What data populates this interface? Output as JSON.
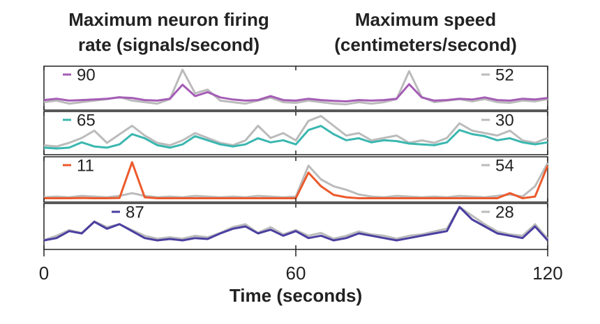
{
  "chart_data": {
    "type": "line",
    "y_title": [
      "Maximum neuron firing",
      "rate (signals/second)"
    ],
    "y2_title": [
      "Maximum speed",
      "(centimeters/second)"
    ],
    "xlabel": "Time (seconds)",
    "xlim": [
      0,
      120
    ],
    "xticks": [
      0,
      60,
      120
    ],
    "x": [
      0,
      3,
      6,
      9,
      12,
      15,
      18,
      21,
      24,
      27,
      30,
      33,
      36,
      39,
      42,
      45,
      48,
      51,
      54,
      57,
      60,
      63,
      66,
      69,
      72,
      75,
      78,
      81,
      84,
      87,
      90,
      93,
      96,
      99,
      102,
      105,
      108,
      111,
      114,
      117,
      120
    ],
    "panels": [
      {
        "ylim": [
          0,
          150
        ],
        "y2lim": [
          0,
          54
        ],
        "series": [
          {
            "name": "52",
            "color": "#bbbbbb",
            "axis": "y2",
            "values": [
              8,
              10,
              6,
              8,
              10,
              12,
              15,
              10,
              8,
              6,
              12,
              52,
              20,
              25,
              10,
              8,
              6,
              10,
              14,
              8,
              7,
              10,
              8,
              6,
              5,
              8,
              6,
              8,
              12,
              50,
              15,
              8,
              10,
              12,
              9,
              12,
              8,
              7,
              10,
              9,
              12
            ]
          },
          {
            "name": "90",
            "color": "#a45db5",
            "values": [
              30,
              35,
              28,
              30,
              32,
              35,
              40,
              38,
              30,
              28,
              35,
              88,
              45,
              60,
              40,
              32,
              28,
              30,
              45,
              30,
              28,
              35,
              30,
              27,
              25,
              30,
              28,
              30,
              35,
              90,
              40,
              28,
              30,
              35,
              32,
              40,
              30,
              28,
              35,
              32,
              38
            ]
          }
        ]
      },
      {
        "ylim": [
          0,
          95
        ],
        "y2lim": [
          0,
          32
        ],
        "series": [
          {
            "name": "30",
            "color": "#bbbbbb",
            "axis": "y2",
            "values": [
              6,
              5,
              8,
              12,
              18,
              8,
              15,
              22,
              14,
              8,
              6,
              10,
              16,
              12,
              8,
              6,
              10,
              22,
              12,
              16,
              10,
              26,
              30,
              22,
              14,
              16,
              10,
              12,
              14,
              8,
              10,
              8,
              12,
              24,
              18,
              16,
              14,
              18,
              10,
              8,
              12
            ]
          },
          {
            "name": "65",
            "color": "#3ab7b0",
            "values": [
              12,
              10,
              12,
              25,
              15,
              12,
              20,
              45,
              35,
              18,
              12,
              20,
              40,
              30,
              20,
              15,
              20,
              35,
              25,
              30,
              20,
              55,
              65,
              45,
              30,
              35,
              25,
              30,
              28,
              22,
              20,
              18,
              25,
              55,
              45,
              40,
              30,
              35,
              25,
              20,
              25
            ]
          }
        ]
      },
      {
        "ylim": [
          0,
          12
        ],
        "y2lim": [
          0,
          60
        ],
        "series": [
          {
            "name": "54",
            "color": "#bbbbbb",
            "axis": "y2",
            "values": [
              4,
              5,
              4,
              6,
              5,
              4,
              6,
              10,
              6,
              4,
              5,
              4,
              6,
              5,
              4,
              5,
              4,
              6,
              5,
              4,
              5,
              50,
              30,
              20,
              15,
              8,
              5,
              4,
              6,
              5,
              4,
              5,
              4,
              6,
              5,
              4,
              6,
              8,
              5,
              20,
              54
            ]
          },
          {
            "name": "11",
            "color": "#ec5a2c",
            "values": [
              0.5,
              0.5,
              0.5,
              0.6,
              0.5,
              0.5,
              0.6,
              11,
              0.8,
              0.5,
              0.5,
              0.5,
              0.5,
              0.5,
              0.5,
              0.5,
              0.5,
              0.5,
              0.5,
              0.5,
              0.5,
              8,
              4,
              1.5,
              0.8,
              0.5,
              0.5,
              0.5,
              0.5,
              0.5,
              0.5,
              0.5,
              0.5,
              0.5,
              0.5,
              0.5,
              0.5,
              2,
              0.5,
              1,
              10
            ]
          }
        ]
      },
      {
        "ylim": [
          0,
          90
        ],
        "y2lim": [
          0,
          29
        ],
        "series": [
          {
            "name": "28",
            "color": "#bbbbbb",
            "axis": "y2",
            "values": [
              5,
              8,
              12,
              10,
              18,
              14,
              16,
              12,
              8,
              6,
              7,
              6,
              8,
              7,
              10,
              14,
              16,
              10,
              14,
              9,
              12,
              8,
              10,
              6,
              8,
              11,
              9,
              8,
              6,
              8,
              9,
              11,
              13,
              28,
              22,
              16,
              11,
              9,
              8,
              16,
              6
            ]
          },
          {
            "name": "87",
            "color": "#4b3fa0",
            "values": [
              15,
              20,
              35,
              30,
              55,
              40,
              50,
              35,
              20,
              15,
              18,
              15,
              20,
              18,
              30,
              40,
              45,
              30,
              38,
              25,
              35,
              20,
              25,
              15,
              20,
              30,
              25,
              20,
              15,
              20,
              25,
              30,
              35,
              87,
              60,
              45,
              30,
              25,
              20,
              45,
              15
            ]
          }
        ]
      }
    ]
  }
}
